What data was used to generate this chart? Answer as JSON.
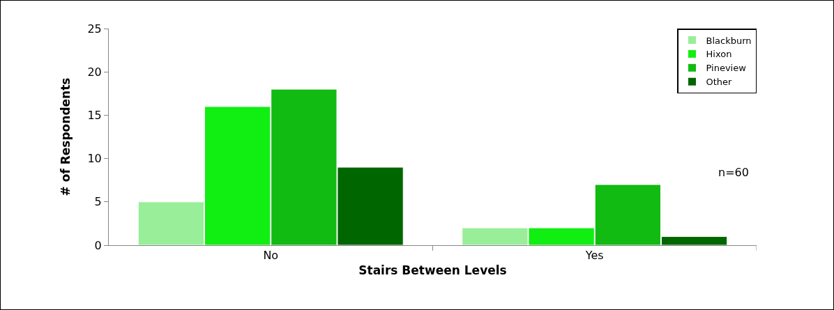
{
  "chart_data": {
    "type": "bar",
    "xlabel": "Stairs Between Levels",
    "ylabel": "# of Respondents",
    "categories": [
      "No",
      "Yes"
    ],
    "series": [
      {
        "name": "Blackburn",
        "color": "#99ee99",
        "values": [
          5,
          2
        ]
      },
      {
        "name": "Hixon",
        "color": "#11ee11",
        "values": [
          16,
          2
        ]
      },
      {
        "name": "Pineview",
        "color": "#11bb11",
        "values": [
          18,
          7
        ]
      },
      {
        "name": "Other",
        "color": "#006600",
        "values": [
          9,
          1
        ]
      }
    ],
    "ylim": [
      0,
      25
    ],
    "yticks": [
      0,
      5,
      10,
      15,
      20,
      25
    ],
    "grid": false,
    "legend": "top right",
    "annotations": [
      "n=60"
    ]
  }
}
